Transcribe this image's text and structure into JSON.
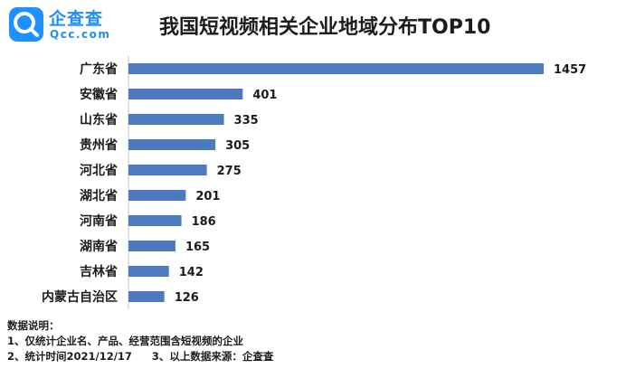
{
  "logo": {
    "name": "企查查",
    "domain": "Qcc.com",
    "mark_icon": "qcc-logo-icon"
  },
  "title": "我国短视频相关企业地域分布TOP10",
  "colors": {
    "bar": "#4e7bc0",
    "brand": "#1e90ff",
    "text": "#1c1c1c"
  },
  "chart_data": {
    "type": "bar",
    "orientation": "horizontal",
    "title": "我国短视频相关企业地域分布TOP10",
    "xlabel": "",
    "ylabel": "",
    "xlim": [
      0,
      1457
    ],
    "grid": false,
    "categories": [
      "广东省",
      "安徽省",
      "山东省",
      "贵州省",
      "河北省",
      "湖北省",
      "河南省",
      "湖南省",
      "吉林省",
      "内蒙古自治区"
    ],
    "values": [
      1457,
      401,
      335,
      305,
      275,
      201,
      186,
      165,
      142,
      126
    ]
  },
  "notes": {
    "heading": "数据说明：",
    "line1": "1、仅统计企业名、产品、经营范围含短视频的企业",
    "line2a": "2、统计时间2021/12/17",
    "line2b": "3、以上数据来源：企查查"
  }
}
